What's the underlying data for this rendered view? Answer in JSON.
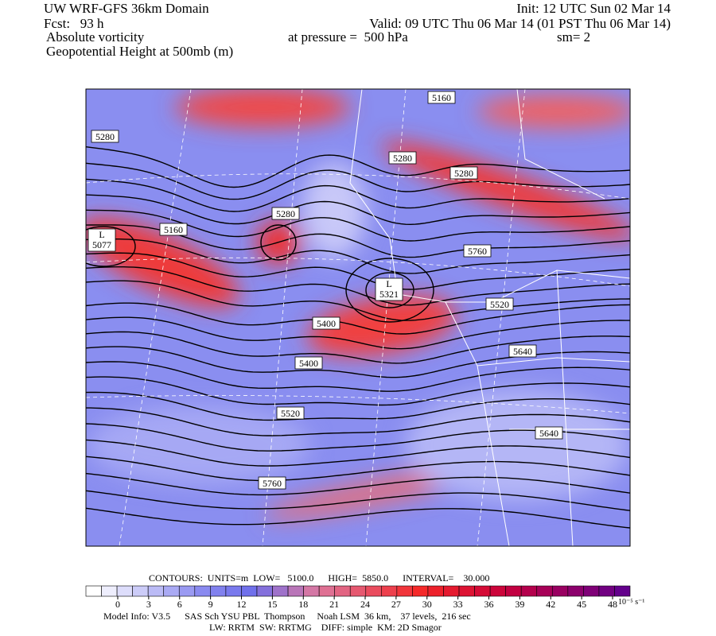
{
  "header": {
    "title": "UW WRF-GFS 36km Domain",
    "init": "Init: 12 UTC Sun 02 Mar 14",
    "forecast": "Fcst:   93 h",
    "valid": "Valid: 09 UTC Thu 06 Mar 14 (01 PST Thu 06 Mar 14)",
    "field": "Absolute vorticity",
    "pressure": "at pressure =  500 hPa",
    "smoothing": "sm= 2",
    "contour_field": "Geopotential Height at 500mb (m)"
  },
  "map": {
    "contour_labels": [
      "5160",
      "5280",
      "5280",
      "5280",
      "5280",
      "5160",
      "5400",
      "5520",
      "5400",
      "5640",
      "5520",
      "5640",
      "5760",
      "5760"
    ],
    "lows": [
      {
        "symbol": "L",
        "value": "5077"
      },
      {
        "symbol": "L",
        "value": "5321"
      }
    ]
  },
  "colorbar": {
    "contours": "CONTOURS:  UNITS=m  LOW=   5100.0      HIGH=  5850.0      INTERVAL=    30.000",
    "ticks": [
      0,
      3,
      6,
      9,
      12,
      15,
      18,
      21,
      24,
      27,
      30,
      33,
      36,
      39,
      42,
      45,
      48
    ],
    "unit": "10⁻⁵ s⁻¹"
  },
  "footer": {
    "line1": "Model Info: V3.5      SAS Sch YSU PBL  Thompson     Noah LSM  36 km,    37 levels,  216 sec",
    "line2": "LW: RRTM  SW: RRTMG    DIFF: simple  KM: 2D Smagor"
  }
}
